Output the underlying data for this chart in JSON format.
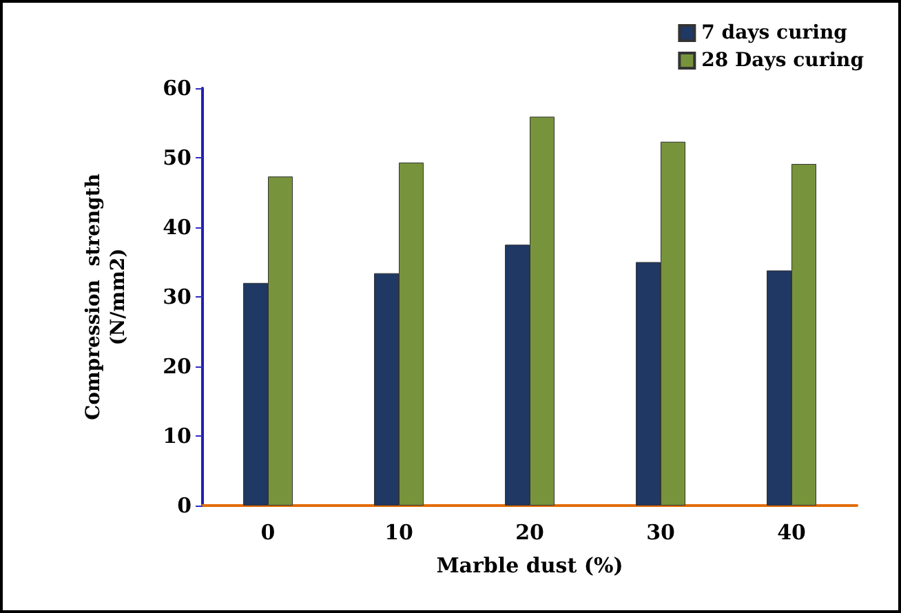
{
  "chart_data": {
    "type": "bar",
    "xlabel": "Marble dust (%)",
    "ylabel": "Compression  strength\n(N/mm2)",
    "categories": [
      "0",
      "10",
      "20",
      "30",
      "40"
    ],
    "series": [
      {
        "name": "7 days curing",
        "color": "#1f3864",
        "values": [
          32,
          33.4,
          37.5,
          35,
          33.8
        ]
      },
      {
        "name": "28 Days curing",
        "color": "#77933c",
        "values": [
          47.3,
          49.3,
          55.9,
          52.3,
          49.1
        ]
      }
    ],
    "ylim": [
      0,
      60
    ],
    "yticks": [
      0,
      10,
      20,
      30,
      40,
      50,
      60
    ],
    "grid": false,
    "legend": "top right"
  }
}
